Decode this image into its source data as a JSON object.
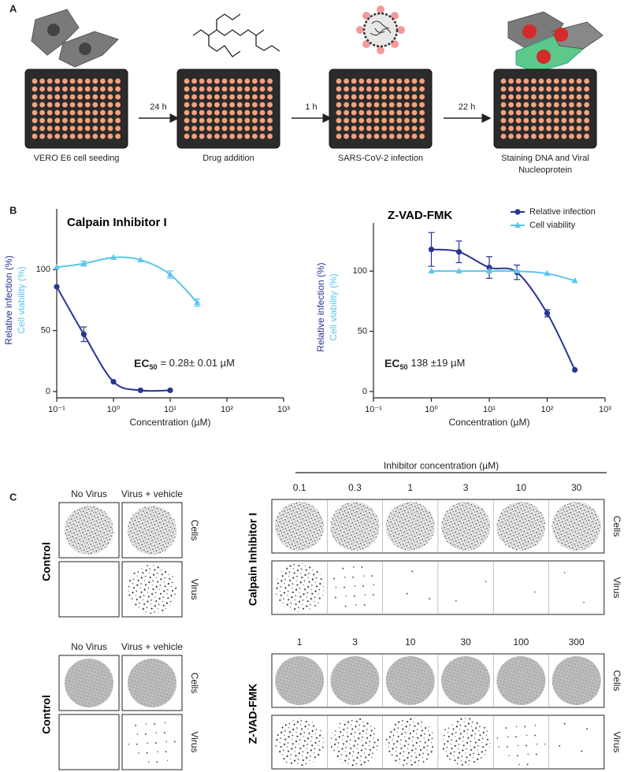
{
  "panel_a": {
    "label": "A",
    "steps": [
      [
        "VERO E6 cell seeding"
      ],
      [
        "Drug addition"
      ],
      [
        "SARS-CoV-2 infection"
      ],
      [
        "Staining DNA and Viral",
        "Nucleoprotein"
      ]
    ],
    "arrows": [
      "24 h",
      "1 h",
      "22 h"
    ]
  },
  "panel_b": {
    "label": "B"
  },
  "chart_data": [
    {
      "type": "scatter",
      "title": "Calpain Inhibitor I",
      "xlabel": "Concentration (µM)",
      "ylabel": [
        "Relative infection (%)",
        "Cell viability (%)"
      ],
      "log_x": true,
      "xlim": [
        0.1,
        1000
      ],
      "xticks": [
        {
          "value": 0.1,
          "label": "10⁻¹"
        },
        {
          "value": 1,
          "label": "10⁰"
        },
        {
          "value": 10,
          "label": "10¹"
        },
        {
          "value": 100,
          "label": "10²"
        },
        {
          "value": 1000,
          "label": "10³"
        }
      ],
      "ylim": [
        0,
        150
      ],
      "yticks": [
        0,
        50,
        100
      ],
      "series": [
        {
          "color": "#283593",
          "marker": "circle",
          "x": [
            0.1,
            0.3,
            1,
            3,
            10
          ],
          "values": [
            86,
            47,
            8,
            1,
            1
          ],
          "errors": [
            null,
            6,
            null,
            null,
            null
          ]
        },
        {
          "color": "#5bc6eb",
          "marker": "triangle",
          "x": [
            0.1,
            0.3,
            1,
            3,
            10,
            30
          ],
          "values": [
            102,
            105,
            110,
            108,
            96,
            73
          ],
          "errors": [
            null,
            2,
            null,
            null,
            3,
            3
          ]
        }
      ],
      "annotation": {
        "main": "EC",
        "sub": "50",
        "text": "= 0.28± 0.01 µM"
      },
      "legend": null
    },
    {
      "type": "scatter",
      "title": "Z-VAD-FMK",
      "xlabel": "Concentration (µM)",
      "ylabel": [
        "Relative infection (%)",
        "Cell viability (%)"
      ],
      "log_x": true,
      "xlim": [
        0.1,
        1000
      ],
      "xticks": [
        {
          "value": 0.1,
          "label": "10⁻¹"
        },
        {
          "value": 1,
          "label": "10⁰"
        },
        {
          "value": 10,
          "label": "10¹"
        },
        {
          "value": 100,
          "label": "10²"
        },
        {
          "value": 1000,
          "label": "10³"
        }
      ],
      "ylim": [
        0,
        140
      ],
      "yticks": [
        0,
        50,
        100
      ],
      "series": [
        {
          "name": "Relative infection",
          "color": "#283593",
          "marker": "circle",
          "x": [
            1,
            3,
            10,
            30,
            100,
            300
          ],
          "values": [
            118,
            116,
            103,
            99,
            65,
            18
          ],
          "errors": [
            14,
            9,
            9,
            6,
            3,
            null
          ]
        },
        {
          "name": "Cell viability",
          "color": "#5bc6eb",
          "marker": "triangle",
          "x": [
            1,
            3,
            10,
            30,
            100,
            300
          ],
          "values": [
            100,
            100,
            100,
            100,
            98,
            92
          ],
          "errors": [
            null,
            null,
            null,
            null,
            null,
            null
          ]
        }
      ],
      "annotation": {
        "main": "EC",
        "sub": "50",
        "text": "138 ±19 µM"
      },
      "legend": "top-right"
    }
  ],
  "panel_c": {
    "label": "C",
    "header": "Inhibitor concentration (µM)",
    "controls": [
      {
        "title": "Control",
        "columns": [
          "No Virus",
          "Virus + vehicle"
        ],
        "rows": [
          "Cells",
          "Virus"
        ]
      },
      {
        "title": "Control",
        "columns": [
          "No Virus",
          "Virus + vehicle"
        ],
        "rows": [
          "Cells",
          "Virus"
        ]
      }
    ],
    "inhibitors": [
      {
        "title": "Calpain Inhibitor I",
        "concentrations": [
          "0.1",
          "0.3",
          "1",
          "3",
          "10",
          "30"
        ],
        "rows": [
          "Cells",
          "Virus"
        ]
      },
      {
        "title": "Z-VAD-FMK",
        "concentrations": [
          "1",
          "3",
          "10",
          "30",
          "100",
          "300"
        ],
        "rows": [
          "Cells",
          "Virus"
        ]
      }
    ]
  }
}
